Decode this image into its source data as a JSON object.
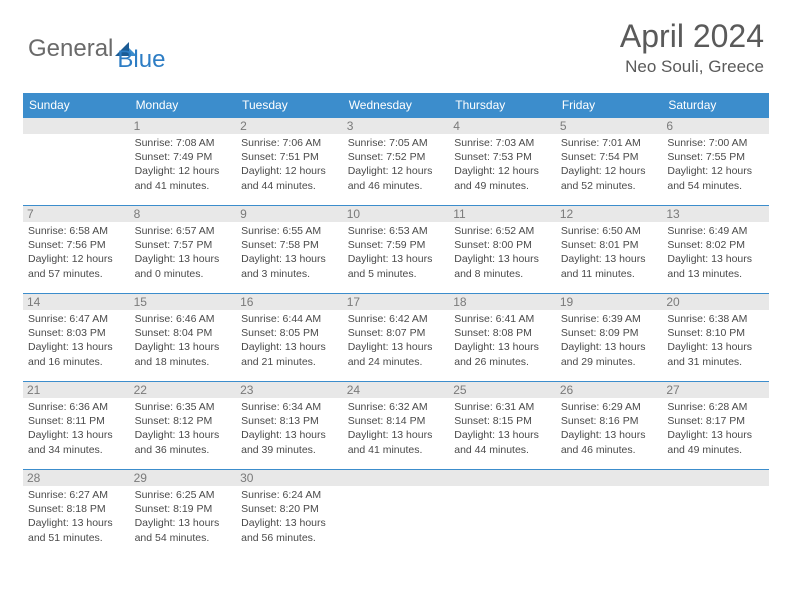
{
  "logo": {
    "text1": "General",
    "text2": "Blue"
  },
  "title": "April 2024",
  "location": "Neo Souli, Greece",
  "day_headers": [
    "Sunday",
    "Monday",
    "Tuesday",
    "Wednesday",
    "Thursday",
    "Friday",
    "Saturday"
  ],
  "colors": {
    "header_bg": "#3c8dcc",
    "header_text": "#ffffff",
    "border": "#3c8dcc",
    "empty_bg": "#e8e8e8",
    "daynum_bg": "#e8e8e8",
    "text": "#4a4a4a",
    "logo_blue": "#2d7dc4",
    "logo_gray": "#6a6a6a"
  },
  "weeks": [
    [
      null,
      {
        "n": "1",
        "sr": "Sunrise: 7:08 AM",
        "ss": "Sunset: 7:49 PM",
        "dl": "Daylight: 12 hours and 41 minutes."
      },
      {
        "n": "2",
        "sr": "Sunrise: 7:06 AM",
        "ss": "Sunset: 7:51 PM",
        "dl": "Daylight: 12 hours and 44 minutes."
      },
      {
        "n": "3",
        "sr": "Sunrise: 7:05 AM",
        "ss": "Sunset: 7:52 PM",
        "dl": "Daylight: 12 hours and 46 minutes."
      },
      {
        "n": "4",
        "sr": "Sunrise: 7:03 AM",
        "ss": "Sunset: 7:53 PM",
        "dl": "Daylight: 12 hours and 49 minutes."
      },
      {
        "n": "5",
        "sr": "Sunrise: 7:01 AM",
        "ss": "Sunset: 7:54 PM",
        "dl": "Daylight: 12 hours and 52 minutes."
      },
      {
        "n": "6",
        "sr": "Sunrise: 7:00 AM",
        "ss": "Sunset: 7:55 PM",
        "dl": "Daylight: 12 hours and 54 minutes."
      }
    ],
    [
      {
        "n": "7",
        "sr": "Sunrise: 6:58 AM",
        "ss": "Sunset: 7:56 PM",
        "dl": "Daylight: 12 hours and 57 minutes."
      },
      {
        "n": "8",
        "sr": "Sunrise: 6:57 AM",
        "ss": "Sunset: 7:57 PM",
        "dl": "Daylight: 13 hours and 0 minutes."
      },
      {
        "n": "9",
        "sr": "Sunrise: 6:55 AM",
        "ss": "Sunset: 7:58 PM",
        "dl": "Daylight: 13 hours and 3 minutes."
      },
      {
        "n": "10",
        "sr": "Sunrise: 6:53 AM",
        "ss": "Sunset: 7:59 PM",
        "dl": "Daylight: 13 hours and 5 minutes."
      },
      {
        "n": "11",
        "sr": "Sunrise: 6:52 AM",
        "ss": "Sunset: 8:00 PM",
        "dl": "Daylight: 13 hours and 8 minutes."
      },
      {
        "n": "12",
        "sr": "Sunrise: 6:50 AM",
        "ss": "Sunset: 8:01 PM",
        "dl": "Daylight: 13 hours and 11 minutes."
      },
      {
        "n": "13",
        "sr": "Sunrise: 6:49 AM",
        "ss": "Sunset: 8:02 PM",
        "dl": "Daylight: 13 hours and 13 minutes."
      }
    ],
    [
      {
        "n": "14",
        "sr": "Sunrise: 6:47 AM",
        "ss": "Sunset: 8:03 PM",
        "dl": "Daylight: 13 hours and 16 minutes."
      },
      {
        "n": "15",
        "sr": "Sunrise: 6:46 AM",
        "ss": "Sunset: 8:04 PM",
        "dl": "Daylight: 13 hours and 18 minutes."
      },
      {
        "n": "16",
        "sr": "Sunrise: 6:44 AM",
        "ss": "Sunset: 8:05 PM",
        "dl": "Daylight: 13 hours and 21 minutes."
      },
      {
        "n": "17",
        "sr": "Sunrise: 6:42 AM",
        "ss": "Sunset: 8:07 PM",
        "dl": "Daylight: 13 hours and 24 minutes."
      },
      {
        "n": "18",
        "sr": "Sunrise: 6:41 AM",
        "ss": "Sunset: 8:08 PM",
        "dl": "Daylight: 13 hours and 26 minutes."
      },
      {
        "n": "19",
        "sr": "Sunrise: 6:39 AM",
        "ss": "Sunset: 8:09 PM",
        "dl": "Daylight: 13 hours and 29 minutes."
      },
      {
        "n": "20",
        "sr": "Sunrise: 6:38 AM",
        "ss": "Sunset: 8:10 PM",
        "dl": "Daylight: 13 hours and 31 minutes."
      }
    ],
    [
      {
        "n": "21",
        "sr": "Sunrise: 6:36 AM",
        "ss": "Sunset: 8:11 PM",
        "dl": "Daylight: 13 hours and 34 minutes."
      },
      {
        "n": "22",
        "sr": "Sunrise: 6:35 AM",
        "ss": "Sunset: 8:12 PM",
        "dl": "Daylight: 13 hours and 36 minutes."
      },
      {
        "n": "23",
        "sr": "Sunrise: 6:34 AM",
        "ss": "Sunset: 8:13 PM",
        "dl": "Daylight: 13 hours and 39 minutes."
      },
      {
        "n": "24",
        "sr": "Sunrise: 6:32 AM",
        "ss": "Sunset: 8:14 PM",
        "dl": "Daylight: 13 hours and 41 minutes."
      },
      {
        "n": "25",
        "sr": "Sunrise: 6:31 AM",
        "ss": "Sunset: 8:15 PM",
        "dl": "Daylight: 13 hours and 44 minutes."
      },
      {
        "n": "26",
        "sr": "Sunrise: 6:29 AM",
        "ss": "Sunset: 8:16 PM",
        "dl": "Daylight: 13 hours and 46 minutes."
      },
      {
        "n": "27",
        "sr": "Sunrise: 6:28 AM",
        "ss": "Sunset: 8:17 PM",
        "dl": "Daylight: 13 hours and 49 minutes."
      }
    ],
    [
      {
        "n": "28",
        "sr": "Sunrise: 6:27 AM",
        "ss": "Sunset: 8:18 PM",
        "dl": "Daylight: 13 hours and 51 minutes."
      },
      {
        "n": "29",
        "sr": "Sunrise: 6:25 AM",
        "ss": "Sunset: 8:19 PM",
        "dl": "Daylight: 13 hours and 54 minutes."
      },
      {
        "n": "30",
        "sr": "Sunrise: 6:24 AM",
        "ss": "Sunset: 8:20 PM",
        "dl": "Daylight: 13 hours and 56 minutes."
      },
      null,
      null,
      null,
      null
    ]
  ]
}
